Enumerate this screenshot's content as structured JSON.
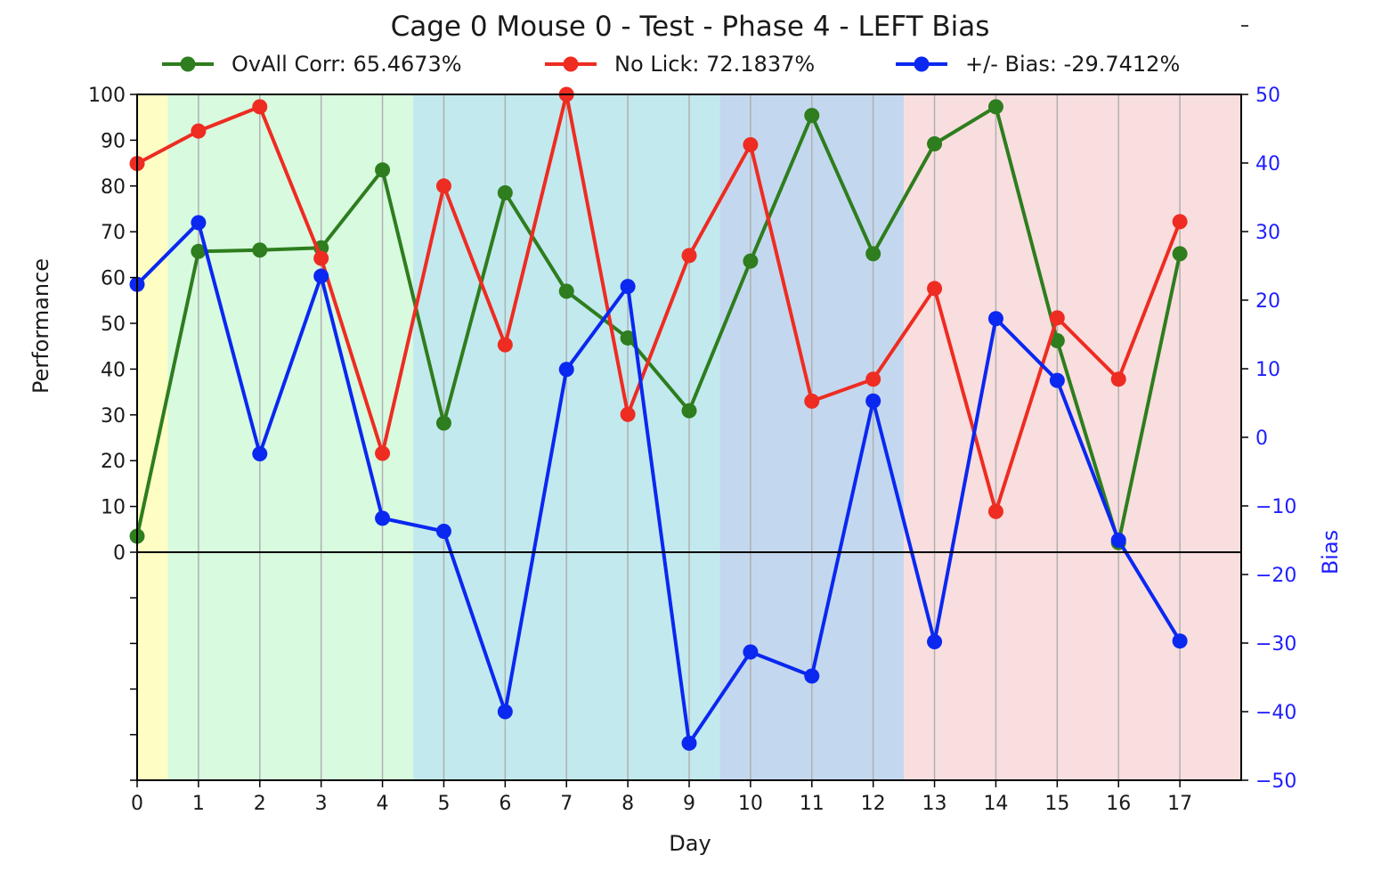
{
  "chart_data": {
    "type": "line",
    "title": "Cage 0 Mouse 0 - Test - Phase 4 - LEFT Bias",
    "xlabel": "Day",
    "ylabel": "Performance",
    "ylabel_right": "Bias",
    "xlim": [
      0,
      18
    ],
    "ylim": [
      0,
      100
    ],
    "ylim_right": [
      -50,
      50
    ],
    "x_ticks": [
      "0",
      "1",
      "2",
      "3",
      "4",
      "5",
      "6",
      "7",
      "8",
      "9",
      "10",
      "11",
      "12",
      "13",
      "14",
      "15",
      "16",
      "17"
    ],
    "y_ticks": [
      "0",
      "10",
      "20",
      "30",
      "40",
      "50",
      "60",
      "70",
      "80",
      "90",
      "100"
    ],
    "y_right_ticks": [
      "50",
      "40",
      "30",
      "20",
      "10",
      "0",
      "−10",
      "−20",
      "−30",
      "−40",
      "−50"
    ],
    "grid": "vertical",
    "legend_position": "top",
    "shaded_regions": [
      {
        "from": 0,
        "to": 0.5,
        "color": "#fdfdc4"
      },
      {
        "from": 0.5,
        "to": 4.5,
        "color": "#d8fadf"
      },
      {
        "from": 4.5,
        "to": 9.5,
        "color": "#c2e9ee"
      },
      {
        "from": 9.5,
        "to": 12.5,
        "color": "#c3d8ee"
      },
      {
        "from": 12.5,
        "to": 18,
        "color": "#f8dede"
      }
    ],
    "x": [
      0,
      1,
      2,
      3,
      4,
      5,
      6,
      7,
      8,
      9,
      10,
      11,
      12,
      13,
      14,
      15,
      16,
      17
    ],
    "series": [
      {
        "name": "OvAll Corr: 65.4673%",
        "color": "#2e7d1e",
        "axis": "left",
        "values": [
          3.5,
          65.7,
          66,
          66.5,
          83.5,
          28.2,
          78.5,
          57,
          46.8,
          30.9,
          63.6,
          95.4,
          65.2,
          89.2,
          97.3,
          46.2,
          2.1,
          65.2
        ]
      },
      {
        "name": "No Lick: 72.1837%",
        "color": "#ee2c22",
        "axis": "left",
        "values": [
          84.9,
          92,
          97.3,
          64.2,
          21.6,
          80,
          45.3,
          100,
          30.1,
          64.8,
          89,
          33,
          37.8,
          57.6,
          8.9,
          51.2,
          37.8,
          72.2
        ]
      },
      {
        "name": "+/- Bias: -29.7412%",
        "color": "#0a28f0",
        "axis": "right",
        "values": [
          22.3,
          31.3,
          -2.4,
          23.5,
          -11.8,
          -13.7,
          -40,
          9.9,
          22,
          -44.6,
          -31.3,
          -34.8,
          5.3,
          -29.8,
          17.3,
          8.3,
          -15,
          -29.7
        ]
      }
    ]
  }
}
